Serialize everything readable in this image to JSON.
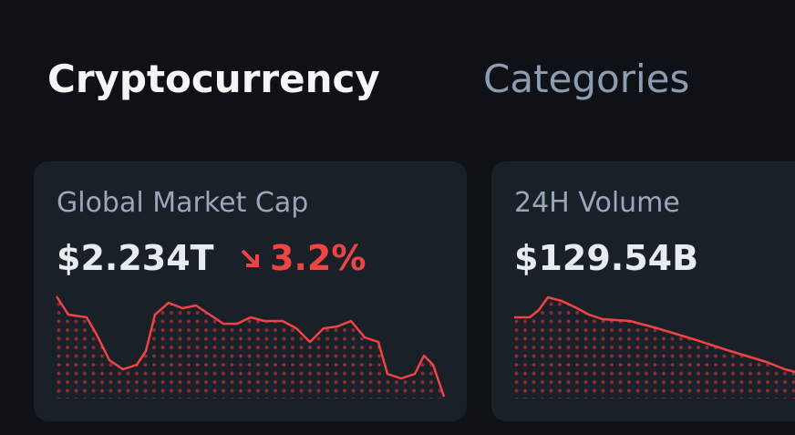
{
  "tabs": [
    "Cryptocurrency",
    "Categories"
  ],
  "cards": [
    {
      "title": "Global Market Cap",
      "value": "$2.234T",
      "change": "3.2%",
      "sparkline": {
        "x": [
          0,
          13,
          33,
          43,
          58,
          73,
          88,
          98,
          108,
          123,
          138,
          153,
          168,
          183,
          198,
          213,
          228,
          248,
          263,
          278,
          293,
          308,
          323,
          338,
          353,
          363,
          378,
          393,
          403,
          413,
          425
        ],
        "values": [
          112,
          92,
          89,
          72,
          42,
          32,
          37,
          52,
          92,
          105,
          99,
          102,
          92,
          82,
          82,
          89,
          85,
          85,
          77,
          62,
          77,
          79,
          85,
          67,
          62,
          27,
          22,
          27,
          47,
          37,
          2
        ],
        "xlim": [
          0,
          425
        ],
        "ylim": [
          0,
          112
        ]
      }
    },
    {
      "title": "24H Volume",
      "value": "$129.54B",
      "sparkline": {
        "x": [
          0,
          17,
          27,
          37,
          52,
          67,
          82,
          97,
          127,
          157,
          197,
          237,
          277,
          297,
          309
        ],
        "values": [
          89,
          89,
          97,
          111,
          107,
          100,
          92,
          87,
          85,
          77,
          65,
          52,
          40,
          32,
          29
        ],
        "xlim": [
          0,
          425
        ],
        "ylim": [
          0,
          112
        ]
      }
    }
  ]
}
